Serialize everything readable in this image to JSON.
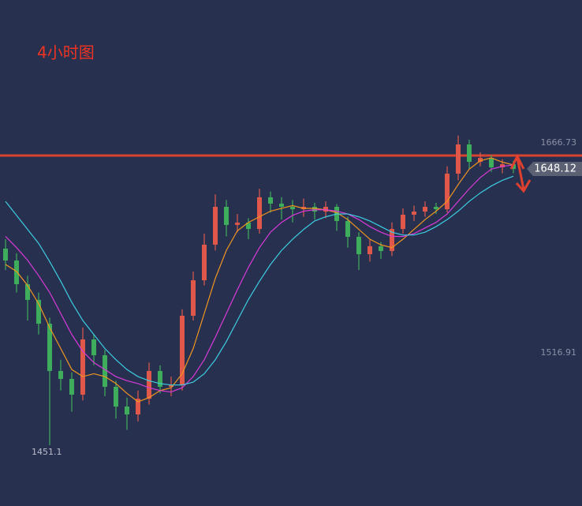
{
  "chart_data": {
    "type": "candlestick",
    "title": "4小时图",
    "open": [
      1591.3,
      1582.8,
      1565.9,
      1554.7,
      1537.7,
      1504.0,
      1498.3,
      1487.1,
      1526.5,
      1515.2,
      1492.7,
      1478.6,
      1473.0,
      1484.2,
      1504.0,
      1492.7,
      1493.8,
      1543.4,
      1568.7,
      1594.1,
      1621.1,
      1608.2,
      1609.8,
      1605.3,
      1627.9,
      1623.4,
      1621.1,
      1619.4,
      1621.1,
      1617.7,
      1621.1,
      1611.0,
      1599.7,
      1587.3,
      1593.0,
      1589.6,
      1605.3,
      1615.5,
      1617.7,
      1621.1,
      1619.4,
      1644.8,
      1665.6,
      1653.2,
      1656.0,
      1649.3,
      1651.5
    ],
    "high": [
      1598,
      1588,
      1572,
      1560,
      1542,
      1512,
      1503,
      1535,
      1530,
      1519,
      1497,
      1485,
      1490,
      1510,
      1508,
      1500,
      1548,
      1575,
      1602,
      1630,
      1626,
      1616,
      1613,
      1634,
      1632,
      1628,
      1626,
      1627,
      1624,
      1625,
      1623,
      1614,
      1603,
      1598,
      1596,
      1610,
      1620,
      1622,
      1625,
      1624,
      1650,
      1672,
      1669,
      1660,
      1658,
      1655,
      1654
    ],
    "low": [
      1576,
      1560,
      1540,
      1530,
      1451.1,
      1490,
      1475,
      1483,
      1508,
      1486,
      1470,
      1462,
      1468,
      1480,
      1488,
      1486,
      1490,
      1540,
      1565,
      1590,
      1600,
      1603,
      1598,
      1602,
      1617,
      1612,
      1610,
      1614,
      1612,
      1613,
      1604,
      1592,
      1576,
      1582,
      1584,
      1586,
      1602,
      1611,
      1614,
      1616,
      1617,
      1640,
      1648,
      1650,
      1646,
      1645,
      1645
    ],
    "close": [
      1582.8,
      1565.9,
      1554.7,
      1537.7,
      1504.0,
      1498.3,
      1487.1,
      1526.5,
      1515.2,
      1492.7,
      1478.6,
      1473.0,
      1484.2,
      1504.0,
      1492.7,
      1493.8,
      1543.4,
      1568.7,
      1594.1,
      1621.1,
      1608.2,
      1609.8,
      1605.3,
      1627.9,
      1623.4,
      1621.1,
      1619.4,
      1621.1,
      1617.7,
      1621.1,
      1611.0,
      1599.7,
      1587.3,
      1593.0,
      1589.6,
      1605.3,
      1615.5,
      1617.7,
      1621.1,
      1619.4,
      1644.8,
      1665.6,
      1653.2,
      1656.0,
      1649.3,
      1651.5,
      1648.12
    ],
    "up_color": "#e0584a",
    "down_color": "#3fae5c",
    "ma": [
      {
        "color": "#f0961e",
        "values": [
          1580,
          1575,
          1565,
          1552,
          1535,
          1520,
          1505,
          1500,
          1502,
          1500,
          1495,
          1488,
          1482,
          1485,
          1490,
          1492,
          1502,
          1520,
          1545,
          1570,
          1590,
          1604,
          1610,
          1614,
          1618,
          1620,
          1622,
          1620,
          1620,
          1619,
          1617,
          1612,
          1605,
          1598,
          1594,
          1592,
          1598,
          1605,
          1612,
          1618,
          1625,
          1637,
          1648,
          1654,
          1656,
          1653,
          1651
        ]
      },
      {
        "color": "#d83ad8",
        "values": [
          1600,
          1592,
          1583,
          1572,
          1560,
          1545,
          1530,
          1518,
          1510,
          1505,
          1500,
          1497,
          1495,
          1492,
          1490,
          1489,
          1492,
          1500,
          1512,
          1528,
          1545,
          1562,
          1578,
          1592,
          1603,
          1610,
          1615,
          1618,
          1619,
          1619,
          1618,
          1616,
          1612,
          1607,
          1603,
          1600,
          1600,
          1602,
          1606,
          1610,
          1616,
          1625,
          1634,
          1642,
          1648,
          1650,
          1651
        ]
      },
      {
        "color": "#3ccde0",
        "values": [
          1625,
          1615,
          1605,
          1595,
          1582,
          1568,
          1553,
          1540,
          1530,
          1520,
          1512,
          1505,
          1500,
          1497,
          1495,
          1494,
          1494,
          1496,
          1502,
          1512,
          1525,
          1540,
          1555,
          1568,
          1580,
          1590,
          1598,
          1605,
          1611,
          1614,
          1616,
          1616,
          1614,
          1611,
          1607,
          1603,
          1601,
          1601,
          1603,
          1607,
          1612,
          1618,
          1625,
          1631,
          1636,
          1640,
          1643
        ]
      }
    ],
    "hline": 1657.7,
    "hline_color": "#d9442f",
    "ylim": [
      1407.65,
      1768.67
    ],
    "yticks": [
      1666.73,
      1516.91
    ]
  }
}
